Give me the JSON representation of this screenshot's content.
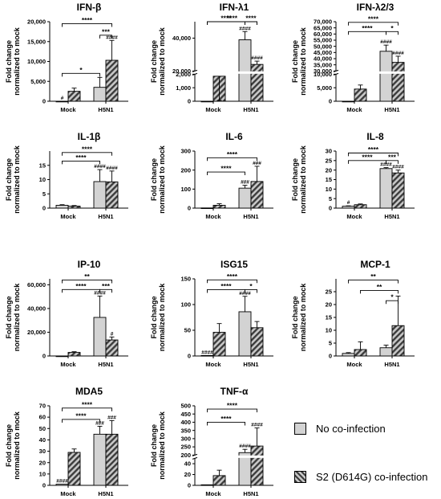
{
  "legend": [
    {
      "label": "No co-infection",
      "fill": "#d3d3d3"
    },
    {
      "label": "S2 (D614G) co-infection",
      "fill": "hatched"
    }
  ],
  "chart_data": [
    {
      "type": "bar",
      "title": "IFN-β",
      "ylabel": "Fold change normalized to mock",
      "categories": [
        "Mock",
        "H5N1"
      ],
      "yticks": [
        0,
        5000,
        10000,
        15000,
        20000
      ],
      "ytick_labels": [
        "0",
        "5,000",
        "10,000",
        "15,000",
        "20,000"
      ],
      "ylim": [
        0,
        20000
      ],
      "series": [
        {
          "values": [
            1,
            3500
          ],
          "errors": [
            0,
            2500
          ],
          "hash": [
            "#",
            ""
          ]
        },
        {
          "values": [
            2500,
            10300
          ],
          "errors": [
            800,
            5000
          ],
          "hash": [
            "",
            "####"
          ]
        }
      ],
      "comparisons": [
        {
          "from": "0-0",
          "to": "1-1",
          "label": "****",
          "y": 19500
        },
        {
          "from": "1-0",
          "to": "1-1",
          "label": "***",
          "y": 16600
        },
        {
          "from": "0-0",
          "to": "1-0",
          "label": "*",
          "y": 7000
        }
      ]
    },
    {
      "type": "bar",
      "title": "IFN-λ1",
      "ylabel": "Fold change normalized to mock",
      "categories": [
        "Mock",
        "H5N1"
      ],
      "axis_break": {
        "lower": [
          0,
          2000
        ],
        "upper": [
          20000,
          50000
        ]
      },
      "yticks": [
        0,
        1000,
        2000,
        20000,
        40000
      ],
      "ytick_labels": [
        "0",
        "1,000",
        "2,000",
        "20,000",
        "40,000"
      ],
      "ylim": [
        0,
        60000
      ],
      "series": [
        {
          "values": [
            1,
            39000
          ],
          "errors": [
            0,
            5000
          ],
          "hash": [
            "",
            "####"
          ]
        },
        {
          "values": [
            1850,
            24000
          ],
          "errors": [
            250,
            2000
          ],
          "hash": [
            "",
            "####"
          ]
        }
      ],
      "comparisons": [
        {
          "from": "0-0",
          "to": "1-1",
          "label": "****",
          "y": 59000
        },
        {
          "from": "0-0",
          "to": "1-0",
          "label": "****",
          "y": 52500
        },
        {
          "from": "1-0",
          "to": "1-1",
          "label": "****",
          "y": 52500
        }
      ]
    },
    {
      "type": "bar",
      "title": "IFN-λ2/3",
      "ylabel": "Fold change normalized to mock",
      "categories": [
        "Mock",
        "H5N1"
      ],
      "axis_break": {
        "lower": [
          0,
          10000
        ],
        "upper": [
          30000,
          70000
        ]
      },
      "yticks": [
        0,
        5000,
        10000,
        30000,
        35000,
        40000,
        45000,
        50000,
        55000,
        60000,
        65000,
        70000
      ],
      "ytick_labels": [
        "0",
        "5,000",
        "10,000",
        "30,000",
        "35,000",
        "40,000",
        "45,000",
        "50,000",
        "55,000",
        "60,000",
        "65,000",
        "70,000"
      ],
      "ylim": [
        0,
        70000
      ],
      "series": [
        {
          "values": [
            1,
            46000
          ],
          "errors": [
            0,
            5000
          ],
          "hash": [
            "",
            "####"
          ]
        },
        {
          "values": [
            4500,
            37000
          ],
          "errors": [
            1500,
            5000
          ],
          "hash": [
            "",
            "####"
          ]
        }
      ],
      "comparisons": [
        {
          "from": "0-0",
          "to": "1-1",
          "label": "****",
          "y": 69500
        },
        {
          "from": "0-0",
          "to": "1-0",
          "label": "****",
          "y": 62000
        },
        {
          "from": "1-0",
          "to": "1-1",
          "label": "*",
          "y": 62000
        }
      ]
    },
    {
      "type": "bar",
      "title": "IL-1β",
      "ylabel": "Fold change normalized to mock",
      "categories": [
        "Mock",
        "H5N1"
      ],
      "yticks": [
        0,
        5,
        10,
        15
      ],
      "ytick_labels": [
        "0",
        "5",
        "10",
        "15"
      ],
      "ylim": [
        0,
        20
      ],
      "series": [
        {
          "values": [
            1,
            9.3
          ],
          "errors": [
            0.2,
            4.2
          ],
          "hash": [
            "",
            "####"
          ]
        },
        {
          "values": [
            0.7,
            9.2
          ],
          "errors": [
            0.2,
            3.8
          ],
          "hash": [
            "",
            "####"
          ]
        }
      ],
      "comparisons": [
        {
          "from": "0-0",
          "to": "1-1",
          "label": "****",
          "y": 19.5
        },
        {
          "from": "0-0",
          "to": "1-0",
          "label": "****",
          "y": 16.5
        }
      ]
    },
    {
      "type": "bar",
      "title": "IL-6",
      "ylabel": "Fold change normalized to mock",
      "categories": [
        "Mock",
        "H5N1"
      ],
      "yticks": [
        0,
        100,
        200,
        300
      ],
      "ytick_labels": [
        "0",
        "100",
        "200",
        "300"
      ],
      "ylim": [
        0,
        300
      ],
      "series": [
        {
          "values": [
            1,
            105
          ],
          "errors": [
            0,
            15
          ],
          "hash": [
            "",
            "###"
          ]
        },
        {
          "values": [
            15,
            140
          ],
          "errors": [
            8,
            80
          ],
          "hash": [
            "",
            "###"
          ]
        }
      ],
      "comparisons": [
        {
          "from": "0-0",
          "to": "1-1",
          "label": "****",
          "y": 265
        },
        {
          "from": "0-0",
          "to": "1-0",
          "label": "****",
          "y": 190
        }
      ]
    },
    {
      "type": "bar",
      "title": "IL-8",
      "ylabel": "Fold change normalized to mock",
      "categories": [
        "Mock",
        "H5N1"
      ],
      "yticks": [
        0,
        5,
        10,
        15,
        20,
        25,
        30
      ],
      "ytick_labels": [
        "0",
        "5",
        "10",
        "15",
        "20",
        "25",
        "30"
      ],
      "ylim": [
        0,
        30
      ],
      "series": [
        {
          "values": [
            1,
            20.8
          ],
          "errors": [
            0.2,
            0.5
          ],
          "hash": [
            "#",
            "####"
          ]
        },
        {
          "values": [
            1.8,
            18.5
          ],
          "errors": [
            0.4,
            1.5
          ],
          "hash": [
            "",
            "####"
          ]
        }
      ],
      "comparisons": [
        {
          "from": "0-0",
          "to": "1-1",
          "label": "****",
          "y": 29
        },
        {
          "from": "0-0",
          "to": "1-0",
          "label": "****",
          "y": 25
        },
        {
          "from": "1-0",
          "to": "1-1",
          "label": "***",
          "y": 25
        }
      ]
    },
    {
      "type": "bar",
      "title": "IP-10",
      "ylabel": "Fold change normalized to mock",
      "categories": [
        "Mock",
        "H5N1"
      ],
      "yticks": [
        0,
        20000,
        40000,
        60000
      ],
      "ytick_labels": [
        "0",
        "20,000",
        "40,000",
        "60,000"
      ],
      "ylim": [
        0,
        65000
      ],
      "series": [
        {
          "values": [
            1,
            32500
          ],
          "errors": [
            0,
            18000
          ],
          "hash": [
            "",
            "####"
          ]
        },
        {
          "values": [
            3000,
            13500
          ],
          "errors": [
            600,
            2500
          ],
          "hash": [
            "",
            "#"
          ]
        }
      ],
      "comparisons": [
        {
          "from": "0-0",
          "to": "1-1",
          "label": "**",
          "y": 64000
        },
        {
          "from": "0-0",
          "to": "1-0",
          "label": "****",
          "y": 56000
        },
        {
          "from": "1-0",
          "to": "1-1",
          "label": "***",
          "y": 56000
        }
      ]
    },
    {
      "type": "bar",
      "title": "ISG15",
      "ylabel": "Fold change normalized to mock",
      "categories": [
        "Mock",
        "H5N1"
      ],
      "yticks": [
        0,
        50,
        100,
        150
      ],
      "ytick_labels": [
        "0",
        "50",
        "100",
        "150"
      ],
      "ylim": [
        0,
        150
      ],
      "series": [
        {
          "values": [
            1,
            86
          ],
          "errors": [
            0,
            30
          ],
          "hash": [
            "####",
            "####"
          ]
        },
        {
          "values": [
            46,
            55
          ],
          "errors": [
            17,
            12
          ],
          "hash": [
            "",
            ""
          ]
        }
      ],
      "comparisons": [
        {
          "from": "0-0",
          "to": "1-1",
          "label": "****",
          "y": 148
        },
        {
          "from": "0-0",
          "to": "1-0",
          "label": "****",
          "y": 129
        },
        {
          "from": "1-0",
          "to": "1-1",
          "label": "*",
          "y": 129
        }
      ]
    },
    {
      "type": "bar",
      "title": "MCP-1",
      "ylabel": "Fold change normalized to mock",
      "categories": [
        "Mock",
        "H5N1"
      ],
      "yticks": [
        0,
        5,
        10,
        15,
        20,
        25
      ],
      "ytick_labels": [
        "0",
        "5",
        "10",
        "15",
        "20",
        "25"
      ],
      "ylim": [
        0,
        30
      ],
      "series": [
        {
          "values": [
            1,
            3.2
          ],
          "errors": [
            0.3,
            1
          ],
          "hash": [
            "",
            ""
          ]
        },
        {
          "values": [
            2.5,
            11.8
          ],
          "errors": [
            3,
            11.5
          ],
          "hash": [
            "",
            ""
          ]
        }
      ],
      "comparisons": [
        {
          "from": "0-0",
          "to": "1-1",
          "label": "**",
          "y": 29.5
        },
        {
          "from": "0-1",
          "to": "1-1",
          "label": "**",
          "y": 25.5
        },
        {
          "from": "1-0",
          "to": "1-1",
          "label": "*",
          "y": 21.5
        }
      ]
    },
    {
      "type": "bar",
      "title": "MDA5",
      "ylabel": "Fold change normalized to mock",
      "categories": [
        "Mock",
        "H5N1"
      ],
      "yticks": [
        0,
        10,
        20,
        30,
        40,
        50,
        60,
        70
      ],
      "ytick_labels": [
        "0",
        "10",
        "20",
        "30",
        "40",
        "50",
        "60",
        "70"
      ],
      "ylim": [
        0,
        70
      ],
      "series": [
        {
          "values": [
            1,
            45
          ],
          "errors": [
            0,
            7
          ],
          "hash": [
            "####",
            "###"
          ]
        },
        {
          "values": [
            29,
            45
          ],
          "errors": [
            3,
            12
          ],
          "hash": [
            "",
            "###"
          ]
        }
      ],
      "comparisons": [
        {
          "from": "0-0",
          "to": "1-1",
          "label": "****",
          "y": 68
        },
        {
          "from": "0-0",
          "to": "1-0",
          "label": "****",
          "y": 58
        }
      ]
    },
    {
      "type": "bar",
      "title": "TNF-α",
      "ylabel": "Fold change normalized to mock",
      "categories": [
        "Mock",
        "H5N1"
      ],
      "axis_break": {
        "lower": [
          0,
          50
        ],
        "upper": [
          200,
          500
        ]
      },
      "yticks": [
        0,
        20,
        40,
        200,
        250,
        300,
        350,
        400,
        450,
        500
      ],
      "ytick_labels": [
        "0",
        "20",
        "40",
        "200",
        "250",
        "300",
        "350",
        "400",
        "450",
        "500"
      ],
      "ylim": [
        0,
        500
      ],
      "series": [
        {
          "values": [
            1,
            215
          ],
          "errors": [
            0,
            20
          ],
          "hash": [
            "",
            "####"
          ]
        },
        {
          "values": [
            18,
            255
          ],
          "errors": [
            10,
            110
          ],
          "hash": [
            "",
            "####"
          ]
        }
      ],
      "comparisons": [
        {
          "from": "0-0",
          "to": "1-1",
          "label": "****",
          "y": 480
        },
        {
          "from": "0-0",
          "to": "1-0",
          "label": "****",
          "y": 400
        }
      ]
    }
  ]
}
